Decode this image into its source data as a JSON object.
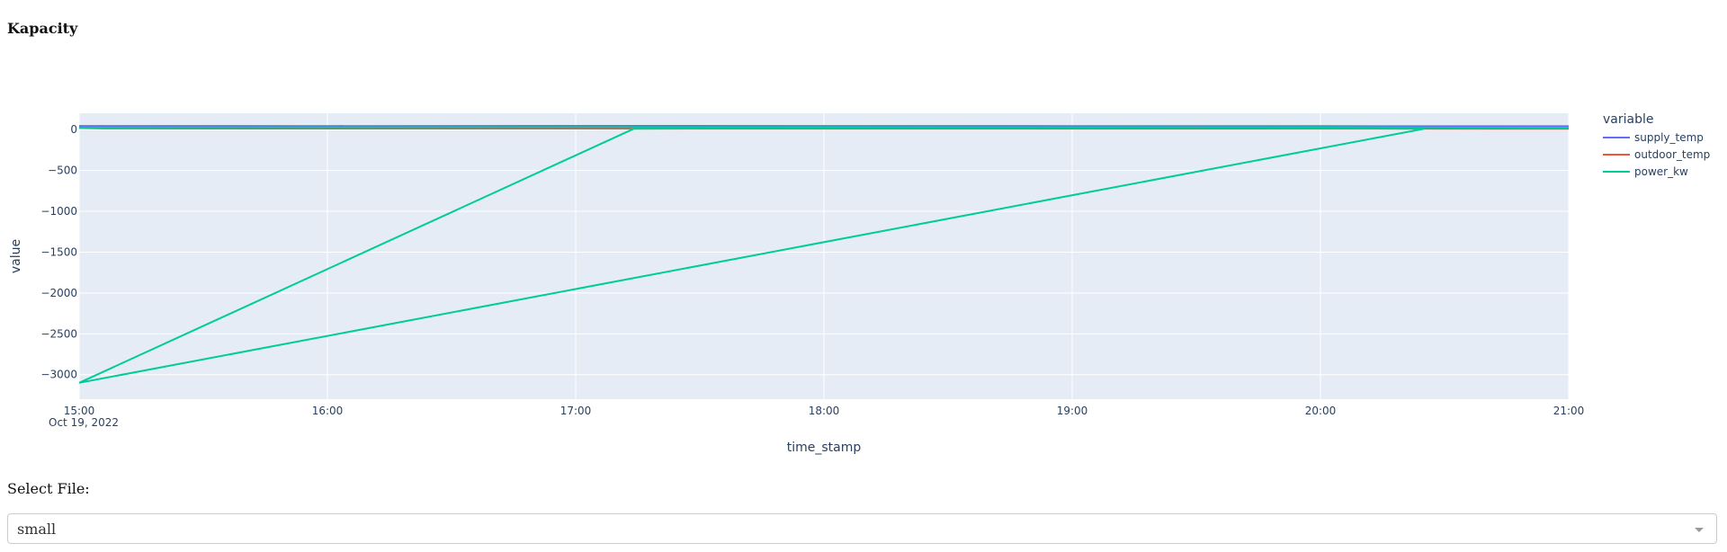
{
  "page": {
    "title": "Kapacity"
  },
  "chart_data": {
    "type": "line",
    "xlabel": "time_stamp",
    "ylabel": "value",
    "x_ticks": [
      "15:00",
      "16:00",
      "17:00",
      "18:00",
      "19:00",
      "20:00",
      "21:00"
    ],
    "x_date_label": "Oct 19, 2022",
    "y_ticks": [
      0,
      -500,
      -1000,
      -1500,
      -2000,
      -2500,
      -3000
    ],
    "y_tick_labels": [
      "0",
      "−500",
      "−1000",
      "−1500",
      "−2000",
      "−2500",
      "−3000"
    ],
    "xlim": [
      "2022-10-19 15:00",
      "2022-10-19 21:00"
    ],
    "ylim": [
      -3300,
      200
    ],
    "grid": true,
    "legend_title": "variable",
    "legend_position": "right",
    "series": [
      {
        "name": "supply_temp",
        "color": "#636efa",
        "x": [
          "2022-10-19 15:00",
          "2022-10-19 16:00",
          "2022-10-19 17:00",
          "2022-10-19 18:00",
          "2022-10-19 19:00",
          "2022-10-19 20:00",
          "2022-10-19 21:00"
        ],
        "y": [
          45,
          44,
          46,
          45,
          44,
          43,
          42
        ]
      },
      {
        "name": "outdoor_temp",
        "color": "#ef553b",
        "x": [
          "2022-10-19 15:00",
          "2022-10-19 15:06",
          "2022-10-19 16:00",
          "2022-10-19 18:00",
          "2022-10-19 21:00"
        ],
        "y": [
          20,
          14,
          13,
          12,
          11
        ]
      },
      {
        "name": "power_kw",
        "color": "#00cc96",
        "x": [
          "2022-10-19 15:00",
          "2022-10-19 17:14",
          "2022-10-19 18:00",
          "2022-10-19 19:30",
          "2022-10-19 20:25",
          "2022-10-19 15:00"
        ],
        "y": [
          -3100,
          10,
          20,
          25,
          10,
          -3100
        ]
      },
      {
        "name": "",
        "color": "#00cc96",
        "x": [
          "2022-10-19 15:00",
          "2022-10-19 16:00",
          "2022-10-19 17:00",
          "2022-10-19 18:00",
          "2022-10-19 19:00",
          "2022-10-19 20:00",
          "2022-10-19 21:00"
        ],
        "y": [
          25,
          28,
          30,
          30,
          28,
          30,
          20
        ]
      }
    ]
  },
  "select": {
    "label": "Select File:",
    "value": "small"
  }
}
